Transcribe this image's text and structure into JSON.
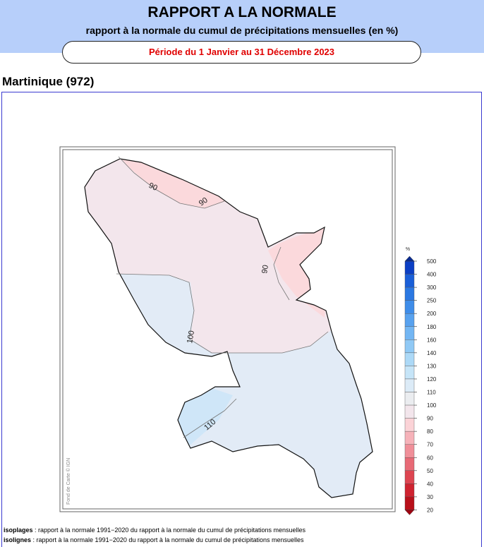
{
  "header": {
    "title": "RAPPORT A LA NORMALE",
    "subtitle": "rapport à la normale du cumul de précipitations mensuelles (en %)",
    "period": "Période du 1 Janvier au 31 Décembre 2023"
  },
  "region": "Martinique (972)",
  "map": {
    "contour_labels": [
      "90",
      "90",
      "90",
      "100",
      "110"
    ],
    "credit": "Fond de Carte © IGN"
  },
  "legend": {
    "unit": "%",
    "levels": [
      500,
      400,
      300,
      250,
      200,
      180,
      160,
      140,
      130,
      120,
      110,
      100,
      90,
      80,
      70,
      60,
      50,
      40,
      30,
      20
    ],
    "colors": [
      "#0c3fc4",
      "#1a5fd8",
      "#2b78e2",
      "#3f8de9",
      "#58a2ef",
      "#73b6f3",
      "#90c9f5",
      "#acd9f7",
      "#c6e5f8",
      "#dcebf7",
      "#ebedf0",
      "#f3e6ec",
      "#fbd3d7",
      "#f6b2b9",
      "#f08f99",
      "#e86a76",
      "#dd4551",
      "#cf2330",
      "#b8101a"
    ],
    "top_color": "#0a2b8f",
    "bottom_color": "#a00010"
  },
  "notes": [
    {
      "term": "isoplages",
      "text": " : rapport à la normale 1991−2020 du rapport à la normale du cumul de précipitations mensuelles"
    },
    {
      "term": "isolignes",
      "text": " : rapport à la normale 1991−2020 du rapport à la normale du cumul de précipitations mensuelles"
    }
  ]
}
